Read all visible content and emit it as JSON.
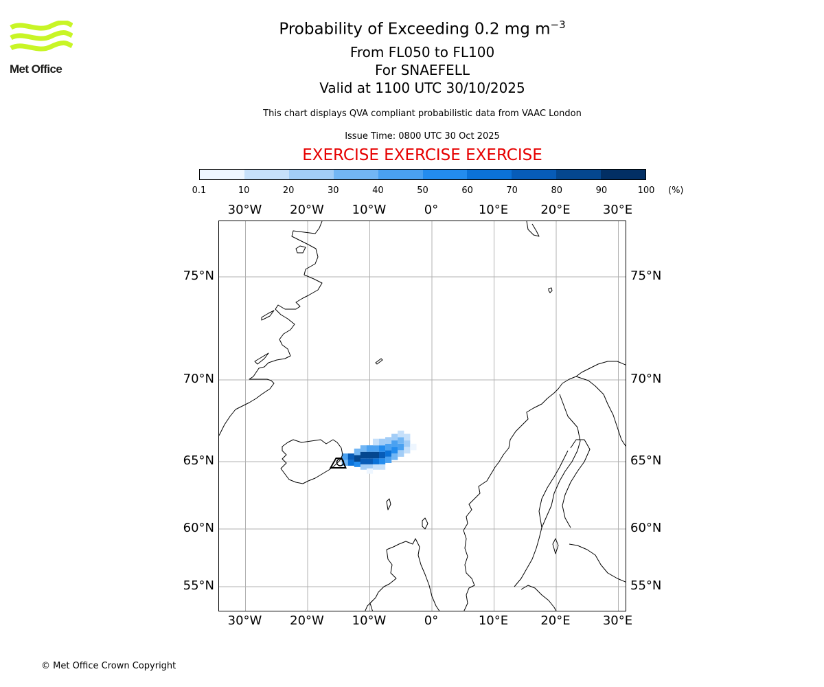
{
  "logo": {
    "text": "Met Office",
    "color": "#c8f526",
    "icon": "met-office-wave-logo"
  },
  "header": {
    "title_main": "Probability of Exceeding 0.2 mg m",
    "title_sup": "−3",
    "subtitle_lines": [
      "From FL050 to FL100",
      "For SNAEFELL",
      "Valid at 1100 UTC 30/10/2025"
    ],
    "description": "This chart displays QVA compliant probabilistic data from VAAC London",
    "issue_time": "Issue Time: 0800 UTC 30 Oct 2025",
    "exercise_banner": "EXERCISE EXERCISE EXERCISE",
    "exercise_color": "#e60000"
  },
  "colorbar": {
    "ticks": [
      "0.1",
      "10",
      "20",
      "30",
      "40",
      "50",
      "60",
      "70",
      "80",
      "90",
      "100"
    ],
    "unit": "(%)",
    "colors": [
      "#eef6ff",
      "#c6e0fa",
      "#a2cdf7",
      "#72b6f4",
      "#4aa1f1",
      "#238cee",
      "#0b72d8",
      "#075cb8",
      "#04478f",
      "#022f64"
    ]
  },
  "map": {
    "lon_labels": [
      "30°W",
      "20°W",
      "10°W",
      "0°",
      "10°E",
      "20°E",
      "30°E"
    ],
    "lon_values": [
      -30,
      -20,
      -10,
      0,
      10,
      20,
      30
    ],
    "lat_labels": [
      "75°N",
      "70°N",
      "65°N",
      "60°N",
      "55°N"
    ],
    "lat_values": [
      75,
      70,
      65,
      60,
      55
    ],
    "volcano": "SNAEFELL",
    "gridline_color": "#b0b0b0",
    "coast_color": "#000000"
  },
  "footer": {
    "copyright": "© Met Office Crown Copyright"
  }
}
